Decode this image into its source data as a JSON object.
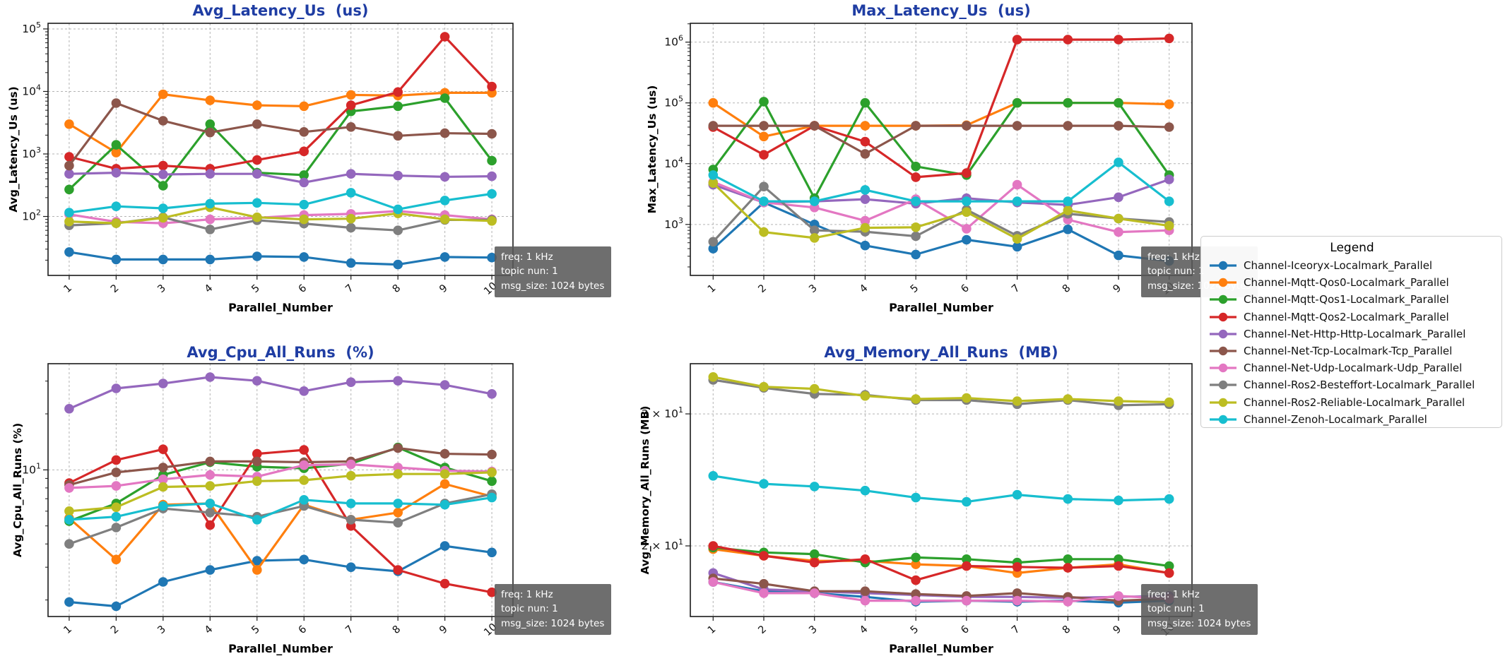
{
  "figure": {
    "background": "#ffffff",
    "title_color": "#1f3da3",
    "grid_color": "#b3b3b3",
    "spine_color": "#1a1a1a"
  },
  "legend": {
    "title": "Legend",
    "items": [
      {
        "label": "Channel-Iceoryx-Localmark_Parallel",
        "color": "#1f77b4"
      },
      {
        "label": "Channel-Mqtt-Qos0-Localmark_Parallel",
        "color": "#ff7f0e"
      },
      {
        "label": "Channel-Mqtt-Qos1-Localmark_Parallel",
        "color": "#2ca02c"
      },
      {
        "label": "Channel-Mqtt-Qos2-Localmark_Parallel",
        "color": "#d62728"
      },
      {
        "label": "Channel-Net-Http-Http-Localmark_Parallel",
        "color": "#9467bd"
      },
      {
        "label": "Channel-Net-Tcp-Localmark-Tcp_Parallel",
        "color": "#8c564b"
      },
      {
        "label": "Channel-Net-Udp-Localmark-Udp_Parallel",
        "color": "#e377c2"
      },
      {
        "label": "Channel-Ros2-Besteffort-Localmark_Parallel",
        "color": "#7f7f7f"
      },
      {
        "label": "Channel-Ros2-Reliable-Localmark_Parallel",
        "color": "#bcbd22"
      },
      {
        "label": "Channel-Zenoh-Localmark_Parallel",
        "color": "#17becf"
      }
    ]
  },
  "annotation": {
    "lines": [
      "freq: 1 kHz",
      "topic nun: 1",
      "msg_size: 1024 bytes"
    ]
  },
  "chart_data": [
    {
      "id": "avg-latency",
      "type": "line",
      "title": "Avg_Latency_Us  (us)",
      "ylabel": "Avg_Latency_Us (us)",
      "xlabel": "Parallel_Number",
      "yscale": "log",
      "ylim": [
        11.4,
        123000
      ],
      "x": [
        1,
        2,
        3,
        4,
        5,
        6,
        7,
        8,
        9,
        10
      ],
      "x_ticklabels": [
        "1",
        "2",
        "3",
        "4",
        "5",
        "6",
        "7",
        "8",
        "9",
        "10"
      ],
      "yticks": [
        {
          "prefix": "",
          "exp": 2,
          "value": 100
        },
        {
          "prefix": "",
          "exp": 3,
          "value": 1000
        },
        {
          "prefix": "",
          "exp": 4,
          "value": 10000
        },
        {
          "prefix": "",
          "exp": 5,
          "value": 100000
        }
      ],
      "series": [
        {
          "name": "Channel-Iceoryx-Localmark_Parallel",
          "values": [
            27,
            20.5,
            20.5,
            20.5,
            23,
            22.5,
            18,
            17,
            22.5,
            22
          ]
        },
        {
          "name": "Channel-Mqtt-Qos0-Localmark_Parallel",
          "values": [
            3000,
            1050,
            9000,
            7200,
            6000,
            5800,
            8800,
            8600,
            9500,
            9500
          ]
        },
        {
          "name": "Channel-Mqtt-Qos1-Localmark_Parallel",
          "values": [
            270,
            1400,
            310,
            3000,
            500,
            460,
            4800,
            5800,
            7800,
            780
          ]
        },
        {
          "name": "Channel-Mqtt-Qos2-Localmark_Parallel",
          "values": [
            900,
            580,
            650,
            580,
            800,
            1100,
            6000,
            9800,
            75000,
            12000
          ]
        },
        {
          "name": "Channel-Net-Http-Http-Localmark_Parallel",
          "values": [
            480,
            500,
            470,
            480,
            480,
            350,
            480,
            450,
            430,
            440
          ]
        },
        {
          "name": "Channel-Net-Tcp-Localmark-Tcp_Parallel",
          "values": [
            650,
            6500,
            3400,
            2200,
            3000,
            2250,
            2700,
            1950,
            2150,
            2100
          ]
        },
        {
          "name": "Channel-Net-Udp-Localmark-Udp_Parallel",
          "values": [
            108,
            82,
            78,
            90,
            95,
            105,
            110,
            122,
            105,
            90
          ]
        },
        {
          "name": "Channel-Ros2-Besteffort-Localmark_Parallel",
          "values": [
            72,
            78,
            97,
            62,
            87,
            77,
            66,
            60,
            88,
            88
          ]
        },
        {
          "name": "Channel-Ros2-Reliable-Localmark_Parallel",
          "values": [
            83,
            78,
            95,
            140,
            97,
            90,
            92,
            112,
            90,
            85
          ]
        },
        {
          "name": "Channel-Zenoh-Localmark_Parallel",
          "values": [
            115,
            145,
            135,
            160,
            165,
            155,
            240,
            130,
            180,
            230
          ]
        }
      ]
    },
    {
      "id": "max-latency",
      "type": "line",
      "title": "Max_Latency_Us  (us)",
      "ylabel": "Max_Latency_Us (us)",
      "xlabel": "Parallel_Number",
      "yscale": "log",
      "ylim": [
        145,
        2040000
      ],
      "x": [
        1,
        2,
        3,
        4,
        5,
        6,
        7,
        8,
        9,
        10
      ],
      "x_ticklabels": [
        "1",
        "2",
        "3",
        "4",
        "5",
        "6",
        "7",
        "8",
        "9",
        "10"
      ],
      "yticks": [
        {
          "prefix": "",
          "exp": 3,
          "value": 1000
        },
        {
          "prefix": "",
          "exp": 4,
          "value": 10000
        },
        {
          "prefix": "",
          "exp": 5,
          "value": 100000
        },
        {
          "prefix": "",
          "exp": 6,
          "value": 1000000
        }
      ],
      "series": [
        {
          "name": "Channel-Iceoryx-Localmark_Parallel",
          "values": [
            400,
            2300,
            1000,
            450,
            320,
            560,
            430,
            830,
            310,
            250
          ]
        },
        {
          "name": "Channel-Mqtt-Qos0-Localmark_Parallel",
          "values": [
            100000,
            28000,
            42000,
            42000,
            42000,
            43000,
            100000,
            100000,
            100000,
            95000
          ]
        },
        {
          "name": "Channel-Mqtt-Qos1-Localmark_Parallel",
          "values": [
            8000,
            105000,
            2700,
            100000,
            9000,
            6500,
            100000,
            100000,
            100000,
            6500
          ]
        },
        {
          "name": "Channel-Mqtt-Qos2-Localmark_Parallel",
          "values": [
            40000,
            14000,
            42000,
            23000,
            6000,
            7000,
            1100000,
            1100000,
            1100000,
            1150000
          ]
        },
        {
          "name": "Channel-Net-Http-Http-Localmark_Parallel",
          "values": [
            4500,
            2300,
            2400,
            2600,
            2200,
            2700,
            2300,
            2100,
            2800,
            5500
          ]
        },
        {
          "name": "Channel-Net-Tcp-Localmark-Tcp_Parallel",
          "values": [
            42000,
            42000,
            42000,
            14500,
            42000,
            42000,
            42000,
            42000,
            42000,
            40000
          ]
        },
        {
          "name": "Channel-Net-Udp-Localmark-Udp_Parallel",
          "values": [
            5000,
            2300,
            1900,
            1150,
            2600,
            850,
            4500,
            1200,
            750,
            800
          ]
        },
        {
          "name": "Channel-Ros2-Besteffort-Localmark_Parallel",
          "values": [
            520,
            4200,
            800,
            760,
            640,
            1750,
            650,
            1500,
            1250,
            1100
          ]
        },
        {
          "name": "Channel-Ros2-Reliable-Localmark_Parallel",
          "values": [
            4800,
            750,
            600,
            880,
            900,
            1600,
            580,
            1700,
            1250,
            950
          ]
        },
        {
          "name": "Channel-Zenoh-Localmark_Parallel",
          "values": [
            6500,
            2400,
            2400,
            3700,
            2400,
            2400,
            2400,
            2400,
            10500,
            2400
          ]
        }
      ]
    },
    {
      "id": "avg-cpu",
      "type": "line",
      "title": "Avg_Cpu_All_Runs  (%)",
      "ylabel": "Avg_Cpu_All_Runs (%)",
      "xlabel": "Parallel_Number",
      "yscale": "log",
      "ylim": [
        1.63,
        37.2
      ],
      "x": [
        1,
        2,
        3,
        4,
        5,
        6,
        7,
        8,
        9,
        10
      ],
      "x_ticklabels": [
        "1",
        "2",
        "3",
        "4",
        "5",
        "6",
        "7",
        "8",
        "9",
        "10"
      ],
      "yticks": [
        {
          "prefix": "",
          "exp": 1,
          "value": 10
        }
      ],
      "series": [
        {
          "name": "Channel-Iceoryx-Localmark_Parallel",
          "values": [
            1.95,
            1.85,
            2.5,
            2.9,
            3.25,
            3.3,
            3.0,
            2.85,
            3.9,
            3.6
          ]
        },
        {
          "name": "Channel-Mqtt-Qos0-Localmark_Parallel",
          "values": [
            5.5,
            3.3,
            6.5,
            6.6,
            2.9,
            6.5,
            5.4,
            5.9,
            8.4,
            7.2
          ]
        },
        {
          "name": "Channel-Mqtt-Qos1-Localmark_Parallel",
          "values": [
            5.3,
            6.6,
            9.4,
            11.0,
            10.4,
            10.2,
            10.8,
            13.2,
            10.3,
            8.7
          ]
        },
        {
          "name": "Channel-Mqtt-Qos2-Localmark_Parallel",
          "values": [
            8.5,
            11.3,
            12.9,
            5.05,
            12.2,
            12.8,
            5.0,
            2.9,
            2.45,
            2.2
          ]
        },
        {
          "name": "Channel-Net-Http-Http-Localmark_Parallel",
          "values": [
            21.3,
            27.4,
            29.1,
            31.5,
            30.1,
            26.5,
            29.6,
            30.1,
            28.6,
            25.6
          ]
        },
        {
          "name": "Channel-Net-Tcp-Localmark-Tcp_Parallel",
          "values": [
            8.3,
            9.7,
            10.3,
            11.1,
            11.1,
            11.0,
            11.1,
            13.1,
            12.2,
            12.1
          ]
        },
        {
          "name": "Channel-Net-Udp-Localmark-Udp_Parallel",
          "values": [
            8.0,
            8.2,
            8.9,
            9.4,
            9.2,
            10.6,
            10.7,
            10.3,
            9.9,
            9.8
          ]
        },
        {
          "name": "Channel-Ros2-Besteffort-Localmark_Parallel",
          "values": [
            4.0,
            4.9,
            6.2,
            5.9,
            5.6,
            6.4,
            5.4,
            5.2,
            6.6,
            7.4
          ]
        },
        {
          "name": "Channel-Ros2-Reliable-Localmark_Parallel",
          "values": [
            6.0,
            6.3,
            8.1,
            8.2,
            8.7,
            8.8,
            9.3,
            9.5,
            9.5,
            9.7
          ]
        },
        {
          "name": "Channel-Zenoh-Localmark_Parallel",
          "values": [
            5.4,
            5.6,
            6.4,
            6.6,
            5.4,
            6.9,
            6.6,
            6.6,
            6.5,
            7.1
          ]
        }
      ]
    },
    {
      "id": "avg-memory",
      "type": "line",
      "title": "Avg_Memory_All_Runs  (MB)",
      "ylabel": "Avg_Memory_All_Runs (MB)",
      "xlabel": "Parallel_Number",
      "yscale": "log",
      "ylim": [
        16.1,
        35.0
      ],
      "x": [
        1,
        2,
        3,
        4,
        5,
        6,
        7,
        8,
        9,
        10
      ],
      "x_ticklabels": [
        "1",
        "2",
        "3",
        "4",
        "5",
        "6",
        "7",
        "8",
        "9",
        "10"
      ],
      "yticks": [
        {
          "prefix": "3 × ",
          "exp": 1,
          "value": 30
        },
        {
          "prefix": "2 × ",
          "exp": 1,
          "value": 20
        }
      ],
      "series": [
        {
          "name": "Channel-Iceoryx-Localmark_Parallel",
          "values": [
            17.9,
            17.4,
            17.3,
            17.1,
            16.85,
            16.9,
            16.85,
            16.9,
            16.8,
            16.9
          ]
        },
        {
          "name": "Channel-Mqtt-Qos0-Localmark_Parallel",
          "values": [
            19.8,
            19.4,
            19.1,
            19.1,
            18.9,
            18.8,
            18.4,
            18.7,
            18.9,
            18.4
          ]
        },
        {
          "name": "Channel-Mqtt-Qos1-Localmark_Parallel",
          "values": [
            19.9,
            19.6,
            19.5,
            19.0,
            19.3,
            19.2,
            19.0,
            19.2,
            19.2,
            18.8
          ]
        },
        {
          "name": "Channel-Mqtt-Qos2-Localmark_Parallel",
          "values": [
            20.0,
            19.4,
            19.0,
            19.2,
            18.0,
            18.8,
            18.75,
            18.7,
            18.8,
            18.4
          ]
        },
        {
          "name": "Channel-Net-Http-Http-Localmark_Parallel",
          "values": [
            18.4,
            17.5,
            17.4,
            17.3,
            17.2,
            17.1,
            17.1,
            17.05,
            17.1,
            17.15
          ]
        },
        {
          "name": "Channel-Net-Tcp-Localmark-Tcp_Parallel",
          "values": [
            18.1,
            17.8,
            17.4,
            17.4,
            17.25,
            17.15,
            17.3,
            17.1,
            16.9,
            17.0
          ]
        },
        {
          "name": "Channel-Net-Udp-Localmark-Udp_Parallel",
          "values": [
            17.9,
            17.3,
            17.3,
            16.9,
            16.9,
            16.9,
            16.9,
            16.85,
            17.15,
            17.0
          ]
        },
        {
          "name": "Channel-Ros2-Besteffort-Localmark_Parallel",
          "values": [
            33.3,
            32.5,
            31.9,
            31.8,
            31.3,
            31.3,
            30.9,
            31.3,
            30.8,
            30.9
          ]
        },
        {
          "name": "Channel-Ros2-Reliable-Localmark_Parallel",
          "values": [
            33.6,
            32.6,
            32.4,
            31.7,
            31.4,
            31.5,
            31.2,
            31.4,
            31.2,
            31.1
          ]
        },
        {
          "name": "Channel-Zenoh-Localmark_Parallel",
          "values": [
            24.8,
            24.2,
            24.0,
            23.7,
            23.2,
            22.9,
            23.4,
            23.1,
            23.0,
            23.1
          ]
        }
      ]
    }
  ]
}
